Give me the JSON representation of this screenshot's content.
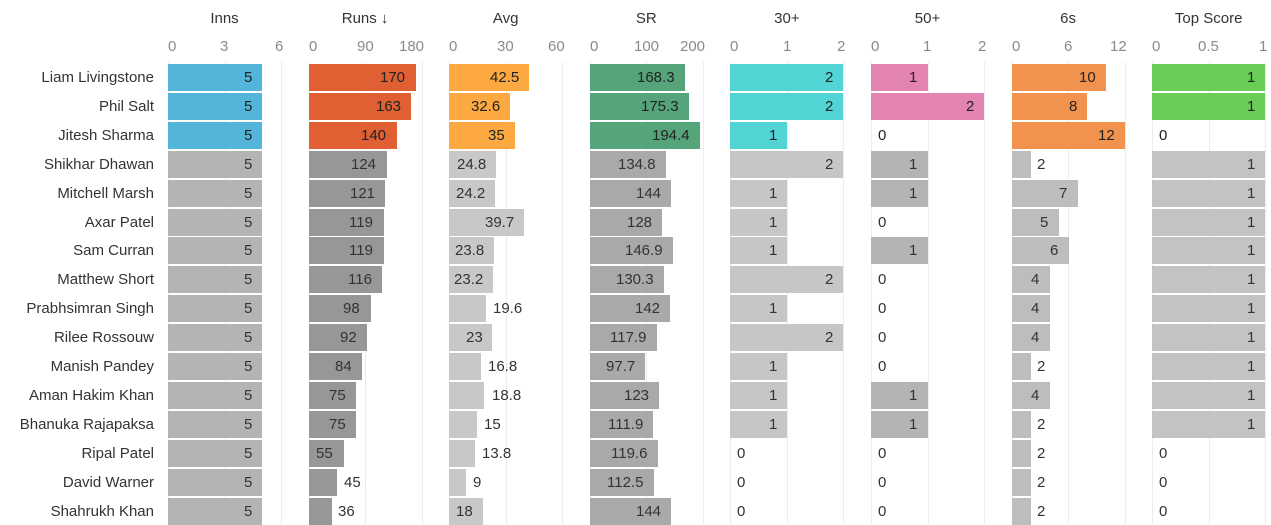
{
  "chart_data": {
    "type": "table",
    "title": "",
    "sort_indicator": "Runs ↓",
    "players": [
      "Liam Livingstone",
      "Phil Salt",
      "Jitesh Sharma",
      "Shikhar Dhawan",
      "Mitchell Marsh",
      "Axar Patel",
      "Sam Curran",
      "Matthew Short",
      "Prabhsimran Singh",
      "Rilee Rossouw",
      "Manish Pandey",
      "Aman Hakim Khan",
      "Bhanuka Rajapaksa",
      "Ripal Patel",
      "David Warner",
      "Shahrukh Khan"
    ],
    "highlighted_rows": 3,
    "gray_color": "#c3c3c3",
    "columns": [
      {
        "key": "inns",
        "title": "Inns",
        "domain": [
          0,
          6
        ],
        "ticks": [
          "0",
          "3",
          "6"
        ],
        "color": "#53b5d9",
        "gray": "#b4b4b4",
        "values": [
          5,
          5,
          5,
          5,
          5,
          5,
          5,
          5,
          5,
          5,
          5,
          5,
          5,
          5,
          5,
          5
        ]
      },
      {
        "key": "runs",
        "title": "Runs ↓",
        "domain": [
          0,
          180
        ],
        "ticks": [
          "0",
          "90",
          "180"
        ],
        "color": "#e05f33",
        "gray": "#979797",
        "values": [
          170,
          163,
          140,
          124,
          121,
          119,
          119,
          116,
          98,
          92,
          84,
          75,
          75,
          55,
          45,
          36
        ]
      },
      {
        "key": "avg",
        "title": "Avg",
        "domain": [
          0,
          60
        ],
        "ticks": [
          "0",
          "30",
          "60"
        ],
        "color": "#fba940",
        "gray": "#c8c8c8",
        "values": [
          42.5,
          32.6,
          35,
          24.8,
          24.2,
          39.7,
          23.8,
          23.2,
          19.6,
          23,
          16.8,
          18.8,
          15,
          13.8,
          9,
          18
        ]
      },
      {
        "key": "sr",
        "title": "SR",
        "domain": [
          0,
          200
        ],
        "ticks": [
          "0",
          "100",
          "200"
        ],
        "color": "#56a57a",
        "gray": "#a9a9a9",
        "values": [
          168.3,
          175.3,
          194.4,
          134.8,
          144,
          128,
          146.9,
          130.3,
          142,
          117.9,
          97.7,
          123,
          111.9,
          119.6,
          112.5,
          144
        ]
      },
      {
        "key": "thirty_plus",
        "title": "30+",
        "domain": [
          0,
          2
        ],
        "ticks": [
          "0",
          "1",
          "2"
        ],
        "color": "#52d4d5",
        "gray": "#c6c6c6",
        "values": [
          2,
          2,
          1,
          2,
          1,
          1,
          1,
          2,
          1,
          2,
          1,
          1,
          1,
          0,
          0,
          0
        ]
      },
      {
        "key": "fifty_plus",
        "title": "50+",
        "domain": [
          0,
          2
        ],
        "ticks": [
          "0",
          "1",
          "2"
        ],
        "color": "#e283b2",
        "gray": "#b4b4b4",
        "values": [
          1,
          2,
          0,
          1,
          1,
          0,
          1,
          0,
          0,
          0,
          0,
          1,
          1,
          0,
          0,
          0
        ]
      },
      {
        "key": "sixes",
        "title": "6s",
        "domain": [
          0,
          12
        ],
        "ticks": [
          "0",
          "6",
          "12"
        ],
        "color": "#f2924f",
        "gray": "#bdbdbd",
        "values": [
          10,
          8,
          12,
          2,
          7,
          5,
          6,
          4,
          4,
          4,
          2,
          4,
          2,
          2,
          2,
          2
        ]
      },
      {
        "key": "top_score",
        "title": "Top Score",
        "domain": [
          0,
          1
        ],
        "ticks": [
          "0",
          "0.5",
          "1"
        ],
        "color": "#6acd55",
        "gray": "#c3c3c3",
        "values": [
          1,
          1,
          0,
          1,
          1,
          1,
          1,
          1,
          1,
          1,
          1,
          1,
          1,
          0,
          0,
          0
        ]
      }
    ]
  }
}
